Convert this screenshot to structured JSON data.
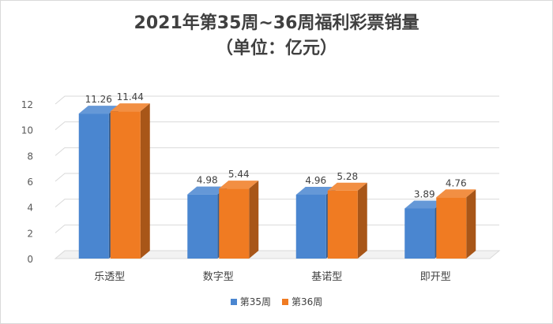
{
  "chart_data": {
    "type": "bar",
    "title": "2021年第35周~36周福利彩票销量",
    "subtitle": "（单位：亿元）",
    "categories": [
      "乐透型",
      "数字型",
      "基诺型",
      "即开型"
    ],
    "series": [
      {
        "name": "第35周",
        "values": [
          11.26,
          4.98,
          4.96,
          3.89
        ],
        "color": "#4a86d0"
      },
      {
        "name": "第36周",
        "values": [
          11.44,
          5.44,
          5.28,
          4.76
        ],
        "color": "#f07b22"
      }
    ],
    "ylim": [
      0,
      12
    ],
    "yticks": [
      0,
      2,
      4,
      6,
      8,
      10,
      12
    ],
    "grid": true,
    "style": "3d",
    "legend_position": "bottom"
  }
}
